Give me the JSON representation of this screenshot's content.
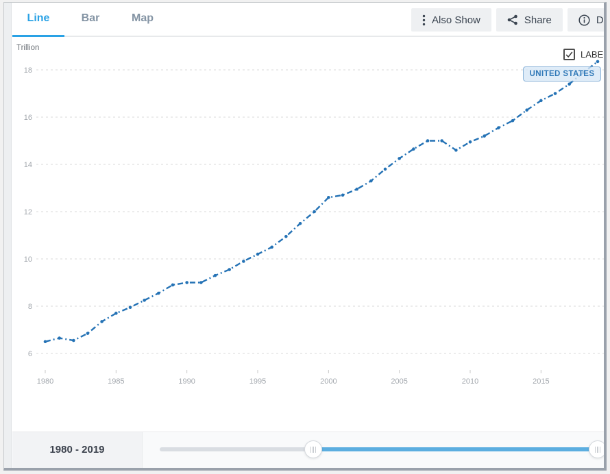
{
  "tabs": {
    "items": [
      {
        "label": "Line",
        "active": true
      },
      {
        "label": "Bar",
        "active": false
      },
      {
        "label": "Map",
        "active": false
      }
    ]
  },
  "toolbar": {
    "buttons": [
      {
        "label": "Also Show",
        "icon": "kebab-icon"
      },
      {
        "label": "Share",
        "icon": "share-icon"
      },
      {
        "label": "Details",
        "icon": "info-icon"
      }
    ]
  },
  "chart": {
    "unit_label": "Trillion",
    "label_checkbox_text": "LABEL",
    "label_checkbox_checked": true,
    "series_tag": "UNITED STATES"
  },
  "footer": {
    "range_label": "1980 - 2019"
  },
  "colors": {
    "accent_blue": "#2aa2e5",
    "line_blue": "#2472b5",
    "slider_blue": "#5caee0",
    "grid_gray": "#d9d9d9",
    "axis_text": "#a2a7ad",
    "tag_bg": "#d6e7f6",
    "tag_border": "#8cb4d9",
    "tag_text": "#3079b8"
  },
  "chart_data": {
    "type": "line",
    "title": "",
    "xlabel": "",
    "ylabel": "Trillion",
    "x": [
      1980,
      1981,
      1982,
      1983,
      1984,
      1985,
      1986,
      1987,
      1988,
      1989,
      1990,
      1991,
      1992,
      1993,
      1994,
      1995,
      1996,
      1997,
      1998,
      1999,
      2000,
      2001,
      2002,
      2003,
      2004,
      2005,
      2006,
      2007,
      2008,
      2009,
      2010,
      2011,
      2012,
      2013,
      2014,
      2015,
      2016,
      2017,
      2018,
      2019
    ],
    "series": [
      {
        "name": "UNITED STATES",
        "values": [
          6.5,
          6.65,
          6.55,
          6.85,
          7.35,
          7.7,
          7.95,
          8.25,
          8.55,
          8.9,
          9.0,
          9.0,
          9.3,
          9.55,
          9.9,
          10.2,
          10.5,
          10.95,
          11.5,
          12.0,
          12.6,
          12.7,
          12.95,
          13.3,
          13.8,
          14.25,
          14.65,
          15.0,
          15.0,
          14.6,
          14.95,
          15.2,
          15.55,
          15.85,
          16.3,
          16.7,
          17.0,
          17.4,
          17.9,
          18.35
        ]
      }
    ],
    "x_ticks": [
      1980,
      1985,
      1990,
      1995,
      2000,
      2005,
      2010,
      2015
    ],
    "y_ticks": [
      6,
      8,
      10,
      12,
      14,
      16,
      18
    ],
    "xlim": [
      1979.7,
      2019.6
    ],
    "ylim": [
      5.5,
      18.7
    ],
    "grid": true,
    "grid_style": "dashed",
    "line_style": "dash-dot",
    "marker": "dot",
    "legend_position": "none"
  }
}
